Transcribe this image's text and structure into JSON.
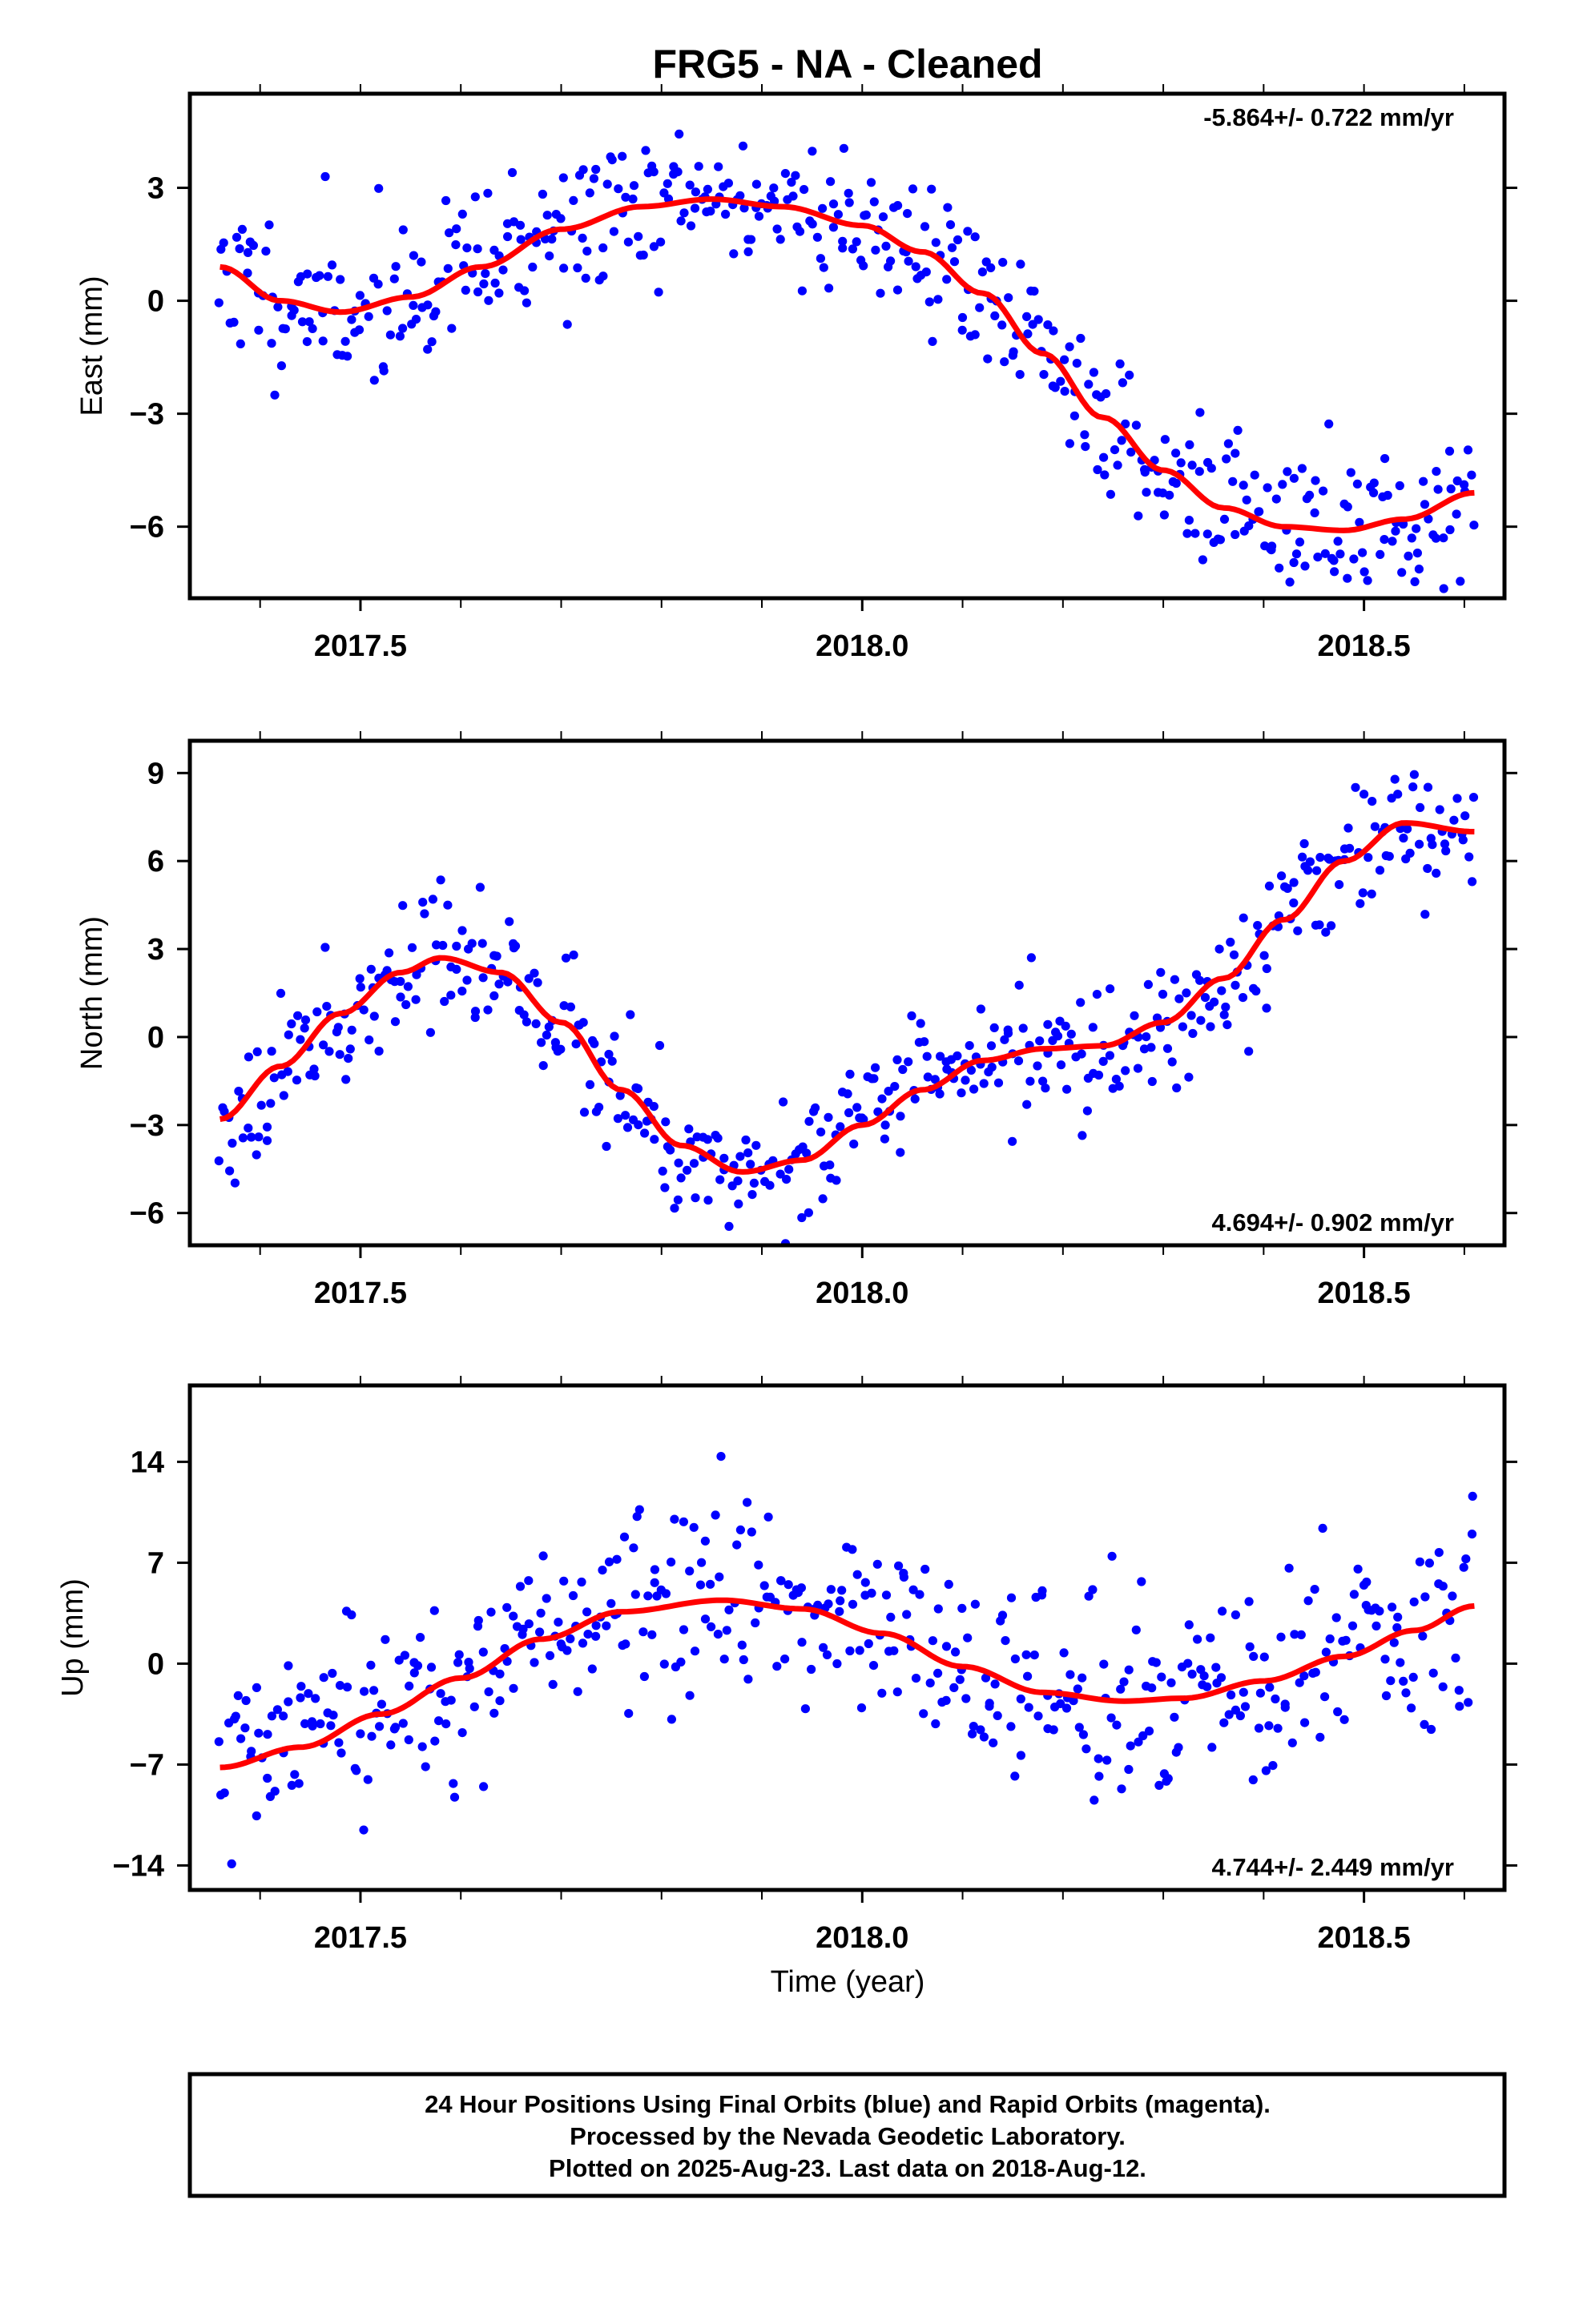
{
  "title": "FRG5  - NA - Cleaned",
  "xlabel": "Time (year)",
  "footer": {
    "line1": "24 Hour Positions Using Final Orbits (blue) and Rapid Orbits (magenta).",
    "line2": "Processed by the Nevada Geodetic Laboratory.",
    "line3": "Plotted on 2025-Aug-23. Last data on 2018-Aug-12."
  },
  "colors": {
    "data_points": "#0000ff",
    "model_fit": "#ff0000",
    "frame": "#000000"
  },
  "chart_data": [
    {
      "type": "scatter",
      "panel": "east",
      "ylabel": "East (mm)",
      "rate_text": "-5.864+/- 0.722 mm/yr",
      "rate_position": "top-right",
      "xlim": [
        2017.33,
        2018.64
      ],
      "ylim": [
        -7.9,
        5.5
      ],
      "x_ticks": [
        2017.5,
        2018.0,
        2018.5
      ],
      "x_tick_labels": [
        "2017.5",
        "2018.0",
        "2018.5"
      ],
      "y_ticks": [
        3,
        0,
        -3,
        -6
      ],
      "y_tick_labels": [
        "3",
        "0",
        "−3",
        "−6"
      ],
      "model_fit": {
        "x": [
          2017.36,
          2017.42,
          2017.48,
          2017.55,
          2017.62,
          2017.7,
          2017.78,
          2017.85,
          2017.92,
          2018.0,
          2018.06,
          2018.12,
          2018.18,
          2018.24,
          2018.3,
          2018.36,
          2018.42,
          2018.48,
          2018.54,
          2018.61
        ],
        "y": [
          0.9,
          0.0,
          -0.3,
          0.1,
          0.9,
          1.9,
          2.5,
          2.7,
          2.5,
          2.0,
          1.3,
          0.2,
          -1.4,
          -3.1,
          -4.5,
          -5.5,
          -6.0,
          -6.1,
          -5.8,
          -5.1
        ]
      },
      "points_seed": 11,
      "points_noise_mm": 1.0
    },
    {
      "type": "scatter",
      "panel": "north",
      "ylabel": "North (mm)",
      "rate_text": "4.694+/- 0.902 mm/yr",
      "rate_position": "bottom-right",
      "xlim": [
        2017.33,
        2018.64
      ],
      "ylim": [
        -7.1,
        10.1
      ],
      "x_ticks": [
        2017.5,
        2018.0,
        2018.5
      ],
      "x_tick_labels": [
        "2017.5",
        "2018.0",
        "2018.5"
      ],
      "y_ticks": [
        9,
        6,
        3,
        0,
        -3,
        -6
      ],
      "y_tick_labels": [
        "9",
        "6",
        "3",
        "0",
        "−3",
        "−6"
      ],
      "model_fit": {
        "x": [
          2017.36,
          2017.42,
          2017.48,
          2017.54,
          2017.58,
          2017.64,
          2017.7,
          2017.76,
          2017.82,
          2017.88,
          2017.94,
          2018.0,
          2018.06,
          2018.12,
          2018.18,
          2018.24,
          2018.3,
          2018.36,
          2018.42,
          2018.48,
          2018.54,
          2018.61
        ],
        "y": [
          -2.8,
          -1.0,
          0.8,
          2.2,
          2.7,
          2.2,
          0.5,
          -1.8,
          -3.7,
          -4.6,
          -4.2,
          -3.0,
          -1.8,
          -0.8,
          -0.4,
          -0.3,
          0.5,
          2.0,
          4.0,
          6.0,
          7.3,
          7.0
        ]
      },
      "points_seed": 23,
      "points_noise_mm": 1.1
    },
    {
      "type": "scatter",
      "panel": "up",
      "ylabel": "Up (mm)",
      "rate_text": "4.744+/- 2.449 mm/yr",
      "rate_position": "bottom-right",
      "xlim": [
        2017.33,
        2018.64
      ],
      "ylim": [
        -15.7,
        19.3
      ],
      "x_ticks": [
        2017.5,
        2018.0,
        2018.5
      ],
      "x_tick_labels": [
        "2017.5",
        "2018.0",
        "2018.5"
      ],
      "y_ticks": [
        14,
        7,
        0,
        -7,
        -14
      ],
      "y_tick_labels": [
        "14",
        "7",
        "0",
        "−7",
        "−14"
      ],
      "model_fit": {
        "x": [
          2017.36,
          2017.44,
          2017.52,
          2017.6,
          2017.68,
          2017.76,
          2017.86,
          2017.94,
          2018.02,
          2018.1,
          2018.18,
          2018.26,
          2018.32,
          2018.4,
          2018.48,
          2018.55,
          2018.61
        ],
        "y": [
          -7.2,
          -5.8,
          -3.5,
          -1.0,
          1.7,
          3.6,
          4.4,
          3.8,
          2.1,
          -0.2,
          -2.0,
          -2.6,
          -2.4,
          -1.2,
          0.5,
          2.3,
          4.0
        ]
      },
      "points_seed": 37,
      "points_noise_mm": 3.3
    }
  ]
}
